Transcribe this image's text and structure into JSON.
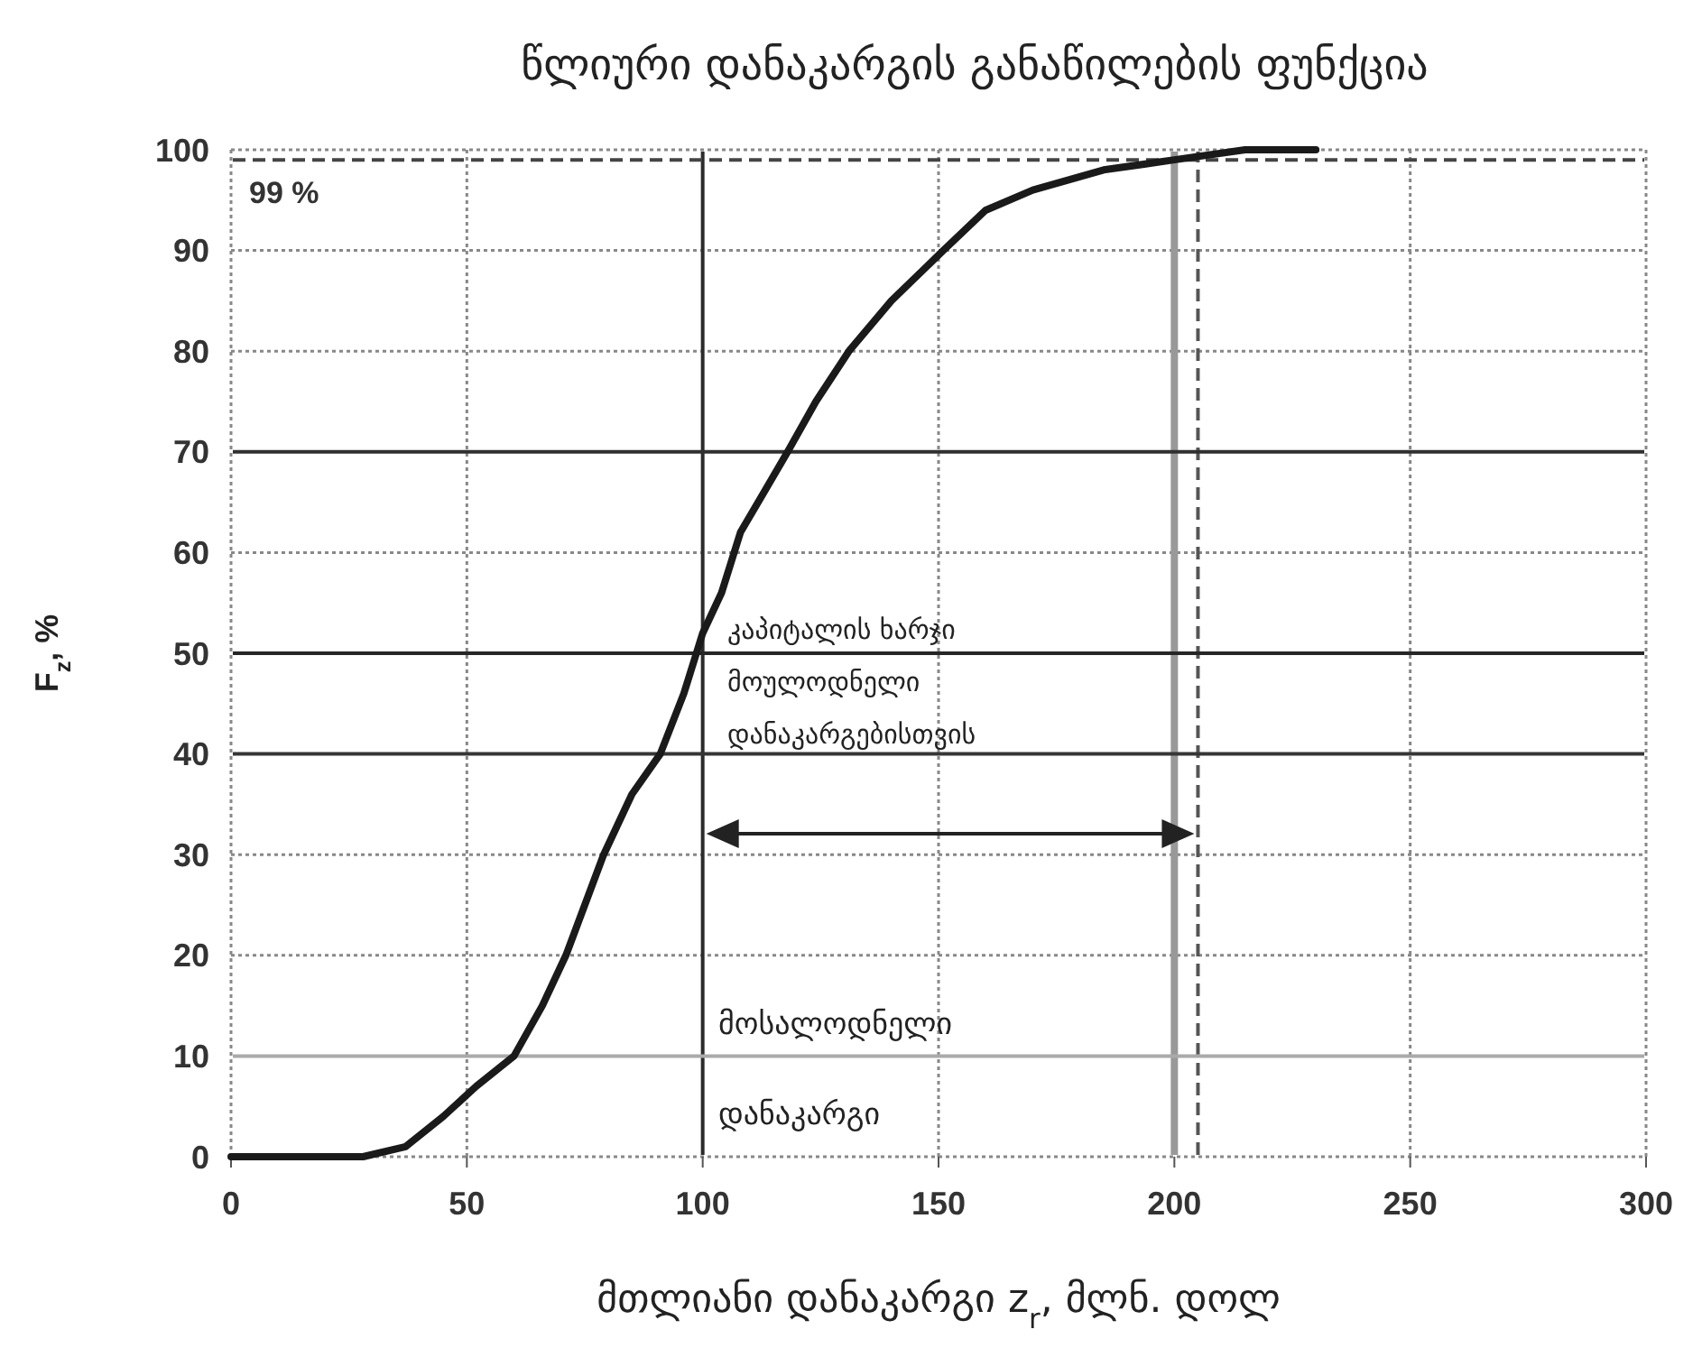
{
  "chart_data": {
    "type": "line",
    "title": "წლიური დანაკარგის განაწილების ფუნქცია",
    "xlabel": "მთლიანი დანაკარგი z$_{r}$, მლნ. დოლ",
    "ylabel": "F$_{z}$, %",
    "xlim": [
      0,
      300
    ],
    "ylim": [
      0,
      100
    ],
    "xticks": [
      0,
      50,
      100,
      150,
      200,
      250,
      300
    ],
    "yticks": [
      0,
      10,
      20,
      30,
      40,
      50,
      60,
      70,
      80,
      90,
      100
    ],
    "grid": true,
    "marker": "none",
    "line_style": "solid",
    "series": [
      {
        "color": "#1a1a1a",
        "x": [
          0,
          28,
          37,
          45,
          52,
          60,
          66,
          71,
          79,
          85,
          91,
          96,
          100,
          104,
          108,
          113,
          118,
          124,
          131,
          140,
          151,
          160,
          170,
          185,
          200,
          215,
          230
        ],
        "values": [
          0,
          0,
          1,
          4,
          7,
          10,
          15,
          20,
          30,
          36,
          40,
          46,
          52,
          56,
          62,
          66,
          70,
          75,
          80,
          85,
          90,
          94,
          96,
          98,
          99,
          100,
          100
        ]
      }
    ],
    "ref_lines": [
      {
        "axis": "x",
        "value": 100,
        "color": "#2b2b2b",
        "line_style": "solid"
      },
      {
        "axis": "x",
        "value": 200,
        "color": "#999999",
        "line_style": "solid"
      },
      {
        "axis": "x",
        "value": 205,
        "color": "#555555",
        "line_style": "dashed"
      },
      {
        "axis": "y",
        "value": 99,
        "label": "99 %",
        "color": "#444444",
        "line_style": "dashed"
      },
      {
        "axis": "y",
        "value": 70,
        "color": "#303030",
        "line_style": "solid"
      },
      {
        "axis": "y",
        "value": 50,
        "color": "#262626",
        "line_style": "solid"
      },
      {
        "axis": "y",
        "value": 40,
        "color": "#363636",
        "line_style": "solid"
      },
      {
        "axis": "y",
        "value": 10,
        "color": "#aaaaaa",
        "line_style": "solid"
      }
    ],
    "annotations": [
      "კაპიტალის ხარჯი მოულოდნელი დანაკარგებისთვის",
      "მოსალოდნელი დანაკარგი"
    ]
  }
}
